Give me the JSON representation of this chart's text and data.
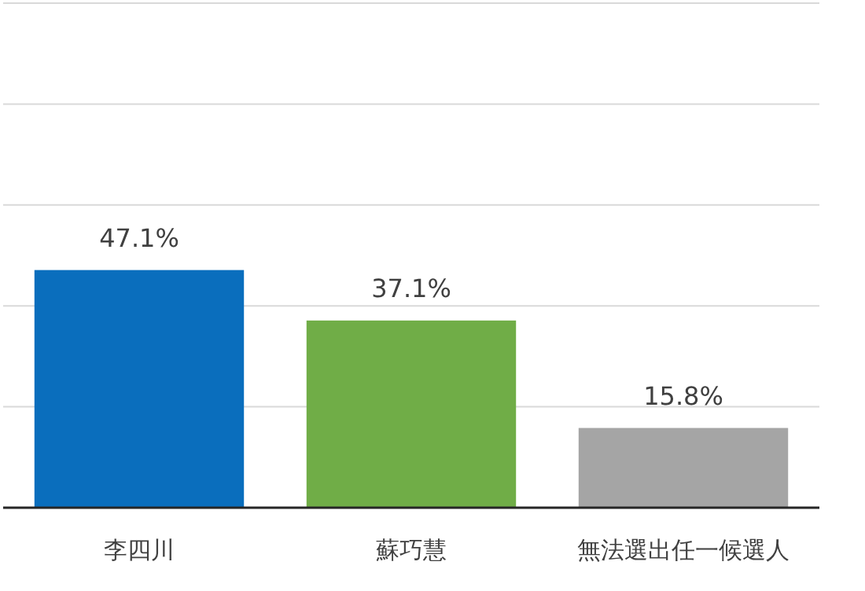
{
  "chart_data": {
    "type": "bar",
    "categories": [
      "李四川",
      "蘇巧慧",
      "無法選出任一候選人"
    ],
    "values": [
      47.1,
      37.1,
      15.8
    ],
    "value_labels": [
      "47.1%",
      "37.1%",
      "15.8%"
    ],
    "colors": [
      "#0a6ebd",
      "#70ad47",
      "#a5a5a5"
    ],
    "ylim": [
      0,
      100
    ],
    "yticks": [
      {
        "value": 0,
        "label": null
      },
      {
        "value": 20,
        "label": null
      },
      {
        "value": 40,
        "label": null
      },
      {
        "value": 60,
        "label": null
      },
      {
        "value": 80,
        "label": null
      },
      {
        "value": 100,
        "label": null
      }
    ],
    "grid": "y",
    "tick_labels": "x"
  }
}
